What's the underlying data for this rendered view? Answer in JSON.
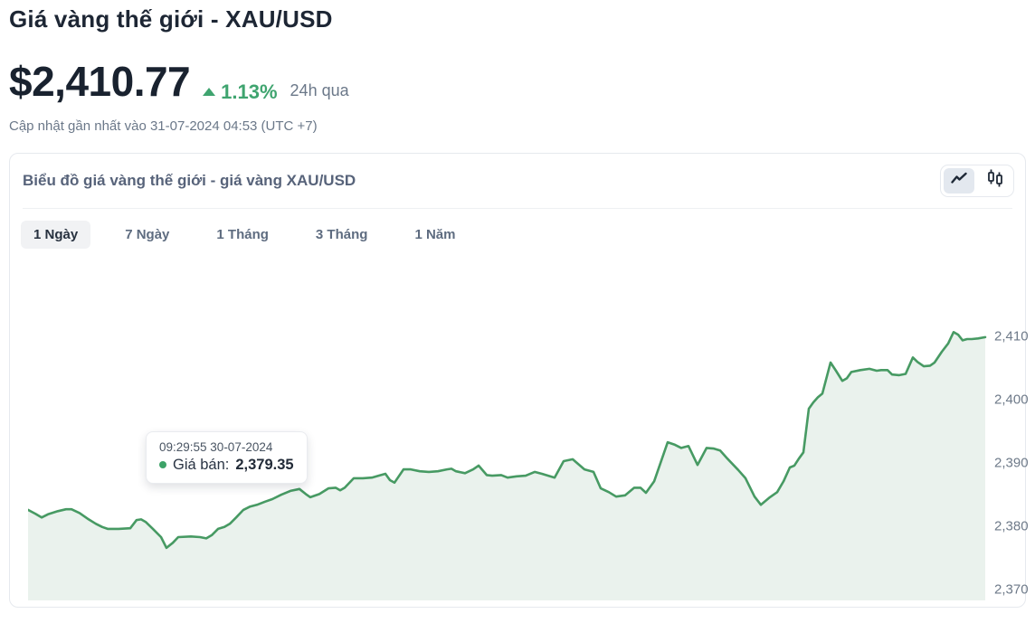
{
  "page": {
    "title": "Giá vàng thế giới - XAU/USD",
    "price": "$2,410.77",
    "change_percent": "1.13%",
    "change_period": "24h qua",
    "updated_text": "Cập nhật gần nhất vào 31-07-2024 04:53 (UTC +7)"
  },
  "colors": {
    "accent_green": "#3fa46f",
    "line_green": "#479a63",
    "area_fill": "#eaf2ed",
    "dark_navy": "#1d2634",
    "muted_gray": "#6b7889"
  },
  "chart_card": {
    "title": "Biểu đồ giá vàng thế giới - giá vàng XAU/USD",
    "toggle": {
      "line_icon": "line-chart",
      "candle_icon": "candlestick-chart",
      "selected": "line-chart"
    },
    "tabs": [
      {
        "label": "1 Ngày",
        "active": true
      },
      {
        "label": "7 Ngày",
        "active": false
      },
      {
        "label": "1 Tháng",
        "active": false
      },
      {
        "label": "3 Tháng",
        "active": false
      },
      {
        "label": "1 Năm",
        "active": false
      }
    ]
  },
  "tooltip": {
    "timestamp": "09:29:55 30-07-2024",
    "label": "Giá bán:",
    "value": "2,379.35"
  },
  "chart_data": {
    "type": "area",
    "title": "Biểu đồ giá vàng thế giới - giá vàng XAU/USD",
    "xlabel": "",
    "ylabel": "",
    "grid": false,
    "legend": false,
    "ylim": [
      2368.3,
      2413.6
    ],
    "y_axis": {
      "side": "right",
      "ticks": [
        {
          "value": 2410,
          "label": "2,410"
        },
        {
          "value": 2400,
          "label": "2,400"
        },
        {
          "value": 2390,
          "label": "2,390"
        },
        {
          "value": 2380,
          "label": "2,380"
        },
        {
          "value": 2370,
          "label": "2,370"
        }
      ]
    },
    "series": [
      {
        "name": "Giá bán",
        "color": "#479a63",
        "fill": "#eaf2ed",
        "points": [
          [
            0,
            2382.6
          ],
          [
            8,
            2382.0
          ],
          [
            15,
            2381.4
          ],
          [
            22,
            2381.9
          ],
          [
            33,
            2382.4
          ],
          [
            42,
            2382.7
          ],
          [
            48,
            2382.7
          ],
          [
            57,
            2382.1
          ],
          [
            67,
            2381.1
          ],
          [
            75,
            2380.4
          ],
          [
            82,
            2379.9
          ],
          [
            88,
            2379.6
          ],
          [
            100,
            2379.6
          ],
          [
            113,
            2379.7
          ],
          [
            120,
            2381.0
          ],
          [
            125,
            2381.1
          ],
          [
            130,
            2380.7
          ],
          [
            138,
            2379.6
          ],
          [
            147,
            2378.3
          ],
          [
            153,
            2376.6
          ],
          [
            160,
            2377.4
          ],
          [
            166,
            2378.3
          ],
          [
            180,
            2378.4
          ],
          [
            190,
            2378.3
          ],
          [
            197,
            2378.1
          ],
          [
            203,
            2378.6
          ],
          [
            210,
            2379.6
          ],
          [
            217,
            2379.9
          ],
          [
            223,
            2380.4
          ],
          [
            230,
            2381.4
          ],
          [
            238,
            2382.6
          ],
          [
            245,
            2383.1
          ],
          [
            253,
            2383.4
          ],
          [
            262,
            2383.9
          ],
          [
            270,
            2384.3
          ],
          [
            280,
            2385.0
          ],
          [
            290,
            2385.6
          ],
          [
            300,
            2385.9
          ],
          [
            307,
            2385.1
          ],
          [
            312,
            2384.6
          ],
          [
            322,
            2385.1
          ],
          [
            332,
            2386.0
          ],
          [
            340,
            2386.1
          ],
          [
            345,
            2385.7
          ],
          [
            350,
            2386.1
          ],
          [
            360,
            2387.6
          ],
          [
            370,
            2387.6
          ],
          [
            380,
            2387.7
          ],
          [
            390,
            2388.1
          ],
          [
            395,
            2388.3
          ],
          [
            400,
            2387.3
          ],
          [
            405,
            2386.9
          ],
          [
            415,
            2389.0
          ],
          [
            423,
            2389.0
          ],
          [
            433,
            2388.7
          ],
          [
            443,
            2388.6
          ],
          [
            453,
            2388.7
          ],
          [
            463,
            2389.0
          ],
          [
            468,
            2389.1
          ],
          [
            473,
            2388.7
          ],
          [
            483,
            2388.4
          ],
          [
            492,
            2389.0
          ],
          [
            498,
            2389.6
          ],
          [
            507,
            2388.1
          ],
          [
            513,
            2388.0
          ],
          [
            523,
            2388.1
          ],
          [
            530,
            2387.7
          ],
          [
            540,
            2387.9
          ],
          [
            550,
            2388.0
          ],
          [
            560,
            2388.6
          ],
          [
            568,
            2388.3
          ],
          [
            582,
            2387.7
          ],
          [
            592,
            2390.3
          ],
          [
            602,
            2390.6
          ],
          [
            615,
            2389.0
          ],
          [
            625,
            2388.6
          ],
          [
            633,
            2386.0
          ],
          [
            642,
            2385.4
          ],
          [
            650,
            2384.7
          ],
          [
            660,
            2384.9
          ],
          [
            670,
            2386.1
          ],
          [
            677,
            2386.1
          ],
          [
            683,
            2385.3
          ],
          [
            692,
            2387.1
          ],
          [
            707,
            2393.3
          ],
          [
            715,
            2392.9
          ],
          [
            722,
            2392.4
          ],
          [
            730,
            2392.7
          ],
          [
            740,
            2389.7
          ],
          [
            750,
            2392.4
          ],
          [
            758,
            2392.3
          ],
          [
            765,
            2392.0
          ],
          [
            773,
            2390.7
          ],
          [
            785,
            2388.9
          ],
          [
            793,
            2387.6
          ],
          [
            803,
            2384.7
          ],
          [
            810,
            2383.4
          ],
          [
            820,
            2384.6
          ],
          [
            828,
            2385.4
          ],
          [
            835,
            2387.1
          ],
          [
            842,
            2389.3
          ],
          [
            847,
            2389.6
          ],
          [
            852,
            2390.7
          ],
          [
            857,
            2391.7
          ],
          [
            863,
            2398.6
          ],
          [
            868,
            2399.6
          ],
          [
            873,
            2400.4
          ],
          [
            878,
            2401.0
          ],
          [
            887,
            2405.9
          ],
          [
            893,
            2404.6
          ],
          [
            900,
            2403.0
          ],
          [
            905,
            2403.4
          ],
          [
            910,
            2404.4
          ],
          [
            920,
            2404.7
          ],
          [
            930,
            2404.9
          ],
          [
            938,
            2404.6
          ],
          [
            943,
            2404.7
          ],
          [
            950,
            2404.7
          ],
          [
            955,
            2404.0
          ],
          [
            963,
            2403.9
          ],
          [
            970,
            2404.1
          ],
          [
            978,
            2406.7
          ],
          [
            983,
            2406.0
          ],
          [
            990,
            2405.3
          ],
          [
            997,
            2405.4
          ],
          [
            1002,
            2405.9
          ],
          [
            1010,
            2407.6
          ],
          [
            1017,
            2408.9
          ],
          [
            1023,
            2410.7
          ],
          [
            1028,
            2410.3
          ],
          [
            1033,
            2409.4
          ],
          [
            1038,
            2409.6
          ],
          [
            1043,
            2409.6
          ],
          [
            1050,
            2409.7
          ],
          [
            1058,
            2409.9
          ]
        ]
      }
    ]
  }
}
